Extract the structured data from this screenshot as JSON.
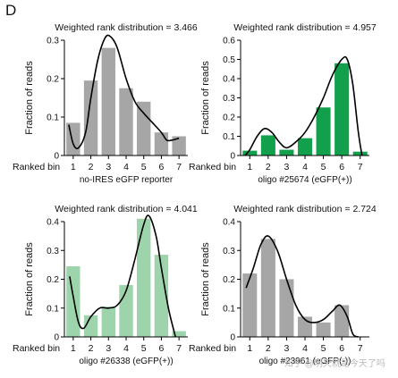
{
  "panel_letter": "D",
  "watermark": "知乎 @明天就是今天了吗",
  "chart_data": [
    {
      "type": "bar",
      "title": "Weighted rank distribution = 3.466",
      "ylabel": "Fraction of reads",
      "xlabel": "Ranked bin",
      "caption": "no-IRES eGFP reporter",
      "categories": [
        "1",
        "2",
        "3",
        "4",
        "5",
        "6",
        "7"
      ],
      "values": [
        0.085,
        0.195,
        0.28,
        0.175,
        0.14,
        0.06,
        0.05
      ],
      "ylim": [
        0,
        0.3
      ],
      "yticks": [
        "0",
        "0.1",
        "0.2",
        "0.3"
      ],
      "bar_color": "#a6a6a6",
      "curve": [
        [
          0.75,
          0.08
        ],
        [
          1.0,
          0.03
        ],
        [
          1.3,
          0.02
        ],
        [
          1.7,
          0.06
        ],
        [
          2.0,
          0.15
        ],
        [
          2.4,
          0.25
        ],
        [
          2.8,
          0.305
        ],
        [
          3.1,
          0.31
        ],
        [
          3.5,
          0.28
        ],
        [
          4.0,
          0.2
        ],
        [
          4.5,
          0.14
        ],
        [
          5.0,
          0.11
        ],
        [
          5.5,
          0.085
        ],
        [
          6.0,
          0.06
        ],
        [
          6.3,
          0.04
        ],
        [
          6.6,
          0.04
        ],
        [
          7.0,
          0.045
        ]
      ]
    },
    {
      "type": "bar",
      "title": "Weighted rank distribution = 4.957",
      "ylabel": "Fraction of reads",
      "xlabel": "Ranked bin",
      "caption": "oligo #25674 (eGFP(+))",
      "categories": [
        "1",
        "2",
        "3",
        "4",
        "5",
        "6",
        "7"
      ],
      "values": [
        0.025,
        0.105,
        0.03,
        0.09,
        0.25,
        0.48,
        0.02
      ],
      "ylim": [
        0,
        0.6
      ],
      "yticks": [
        "0",
        "0.1",
        "0.2",
        "0.3",
        "0.4",
        "0.5",
        "0.6"
      ],
      "bar_color": "#13a04c",
      "curve": [
        [
          0.75,
          0.0
        ],
        [
          1.0,
          0.03
        ],
        [
          1.4,
          0.1
        ],
        [
          1.8,
          0.14
        ],
        [
          2.2,
          0.12
        ],
        [
          2.6,
          0.07
        ],
        [
          3.0,
          0.04
        ],
        [
          3.5,
          0.07
        ],
        [
          4.0,
          0.12
        ],
        [
          4.5,
          0.2
        ],
        [
          5.0,
          0.3
        ],
        [
          5.5,
          0.42
        ],
        [
          6.0,
          0.5
        ],
        [
          6.3,
          0.5
        ],
        [
          6.6,
          0.37
        ],
        [
          6.9,
          0.12
        ],
        [
          7.1,
          0.0
        ]
      ]
    },
    {
      "type": "bar",
      "title": "Weighted rank distribution = 4.041",
      "ylabel": "Fraction of reads",
      "xlabel": "Ranked bin",
      "caption": "oligo #26338 (eGFP(+))",
      "categories": [
        "1",
        "2",
        "3",
        "4",
        "5",
        "6",
        "7"
      ],
      "values": [
        0.245,
        0.075,
        0.105,
        0.18,
        0.41,
        0.285,
        0.02
      ],
      "ylim": [
        0,
        0.4
      ],
      "yticks": [
        "0",
        "0.1",
        "0.2",
        "0.3",
        "0.4"
      ],
      "bar_color": "#9dd4ac",
      "curve": [
        [
          0.8,
          0.21
        ],
        [
          1.0,
          0.14
        ],
        [
          1.3,
          0.05
        ],
        [
          1.6,
          0.03
        ],
        [
          2.0,
          0.07
        ],
        [
          2.5,
          0.1
        ],
        [
          3.0,
          0.1
        ],
        [
          3.5,
          0.11
        ],
        [
          4.0,
          0.16
        ],
        [
          4.5,
          0.27
        ],
        [
          5.0,
          0.39
        ],
        [
          5.3,
          0.42
        ],
        [
          5.7,
          0.35
        ],
        [
          6.0,
          0.24
        ],
        [
          6.4,
          0.1
        ],
        [
          6.8,
          0.0
        ]
      ]
    },
    {
      "type": "bar",
      "title": "Weighted rank distribution = 2.724",
      "ylabel": "Fraction of reads",
      "xlabel": "Ranked bin",
      "caption": "oligo #23961 (eGFP(-))",
      "categories": [
        "1",
        "2",
        "3",
        "4",
        "5",
        "6",
        "7"
      ],
      "values": [
        0.22,
        0.34,
        0.2,
        0.07,
        0.05,
        0.11,
        0.0
      ],
      "ylim": [
        0,
        0.4
      ],
      "yticks": [
        "0",
        "0.1",
        "0.2",
        "0.3",
        "0.4"
      ],
      "bar_color": "#a6a6a6",
      "curve": [
        [
          0.8,
          0.17
        ],
        [
          1.2,
          0.24
        ],
        [
          1.6,
          0.32
        ],
        [
          2.0,
          0.35
        ],
        [
          2.5,
          0.3
        ],
        [
          3.0,
          0.2
        ],
        [
          3.5,
          0.11
        ],
        [
          4.0,
          0.06
        ],
        [
          4.5,
          0.05
        ],
        [
          5.0,
          0.06
        ],
        [
          5.5,
          0.09
        ],
        [
          5.9,
          0.11
        ],
        [
          6.3,
          0.07
        ],
        [
          6.6,
          0.01
        ],
        [
          6.9,
          0.0
        ]
      ]
    }
  ]
}
